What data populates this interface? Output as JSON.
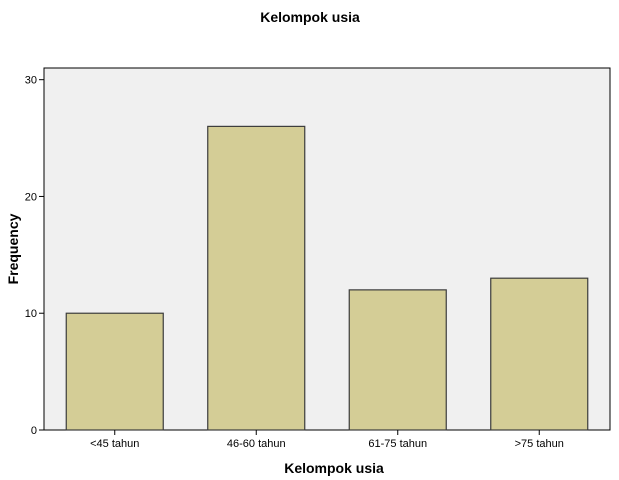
{
  "chart_data": {
    "type": "bar",
    "title": "Kelompok usia",
    "xlabel": "Kelompok usia",
    "ylabel": "Frequency",
    "categories": [
      "<45 tahun",
      "46-60 tahun",
      "61-75 tahun",
      ">75 tahun"
    ],
    "values": [
      10,
      26,
      12,
      13
    ],
    "ylim": [
      0,
      31
    ],
    "yticks": [
      "0",
      "10",
      "20",
      "30"
    ],
    "grid": false,
    "legend": "none",
    "colors": {
      "bar_fill": "#d4cd96",
      "bar_stroke": "#3c3c3c",
      "plot_background": "#f0f0f0",
      "axis": "#000000"
    }
  }
}
